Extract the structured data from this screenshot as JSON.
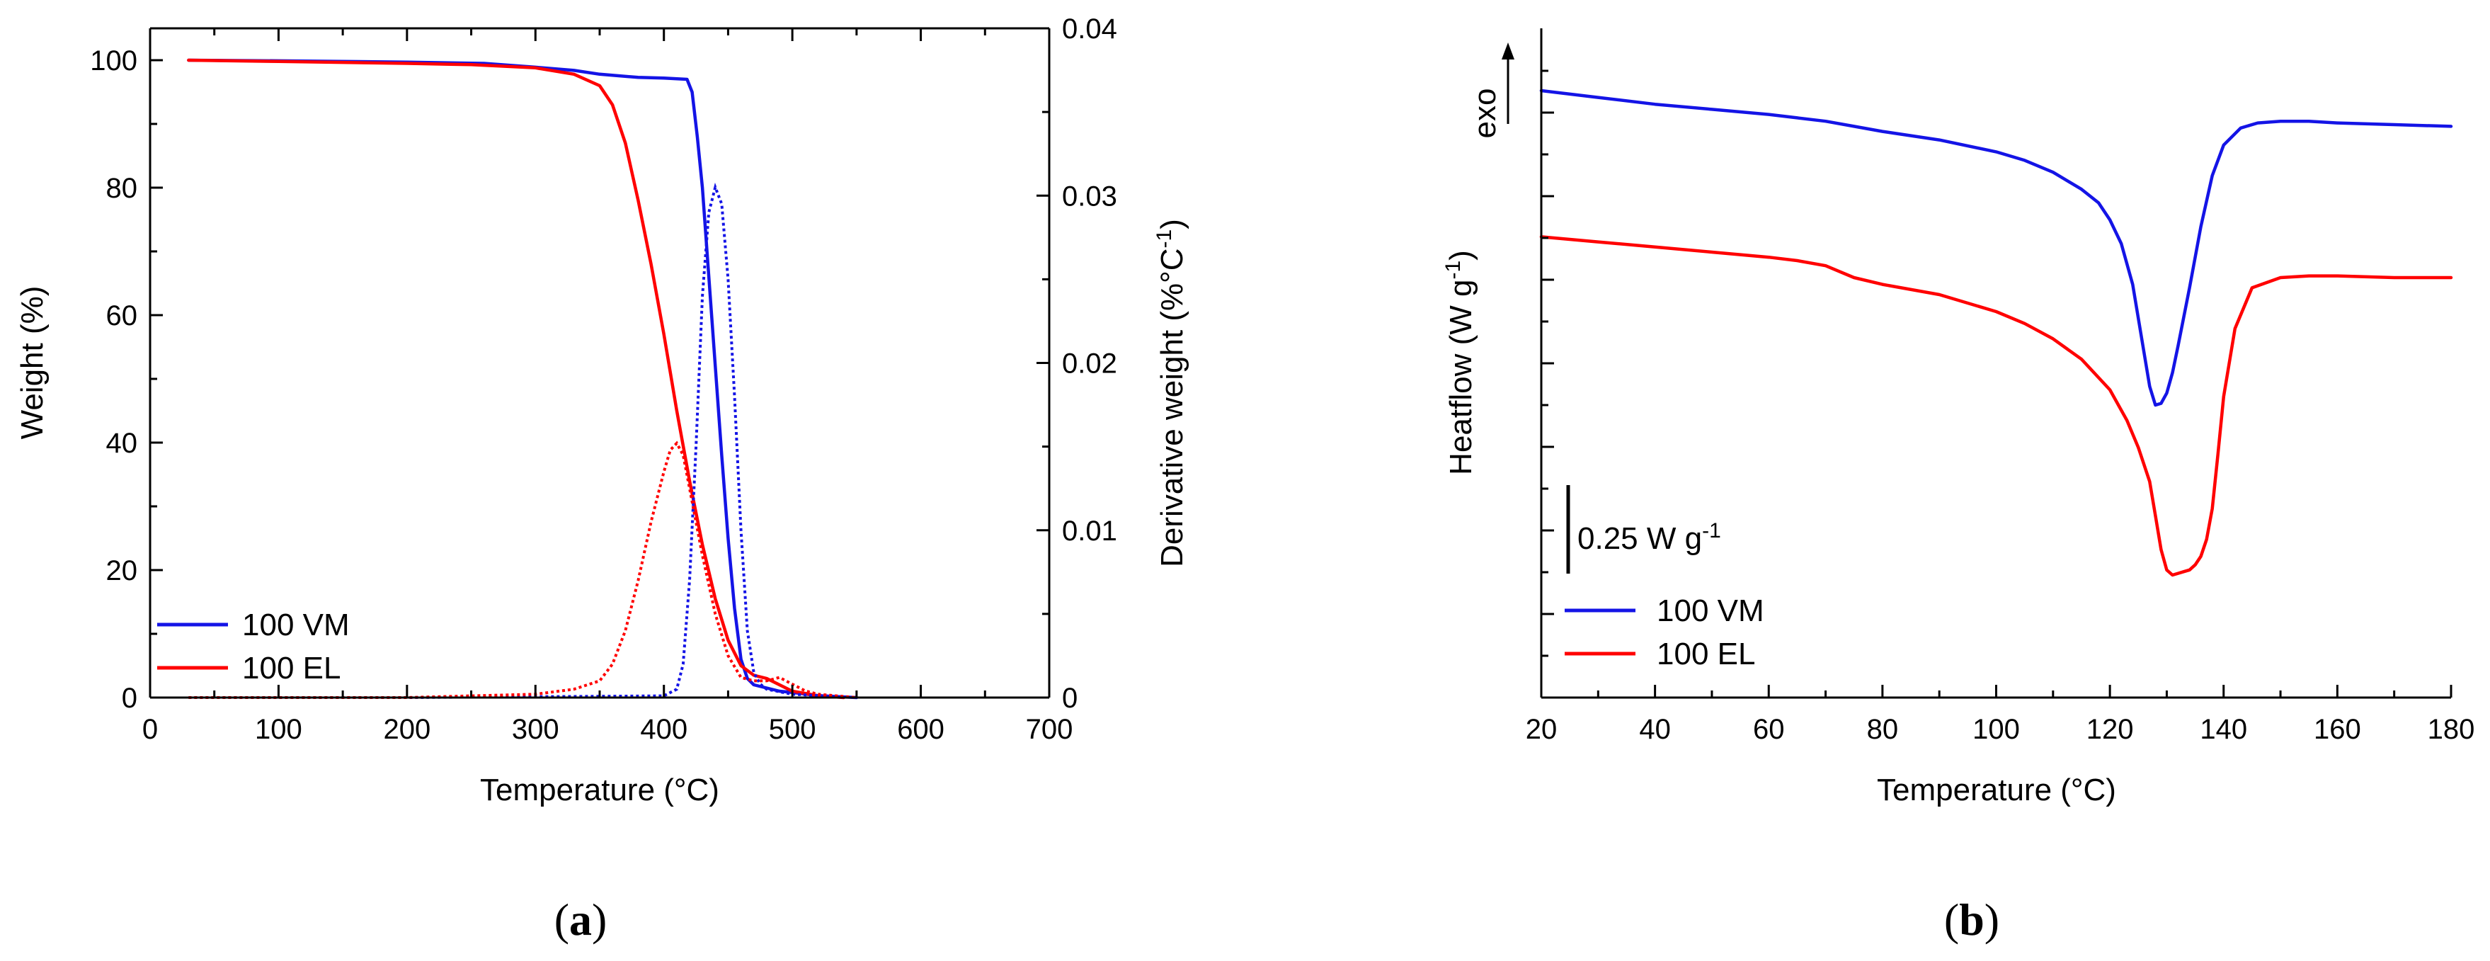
{
  "chart_data": [
    {
      "id": "a",
      "type": "line",
      "panel_label": "a",
      "xlabel": "Temperature (°C)",
      "ylabel": "Weight (%)",
      "y2label": "Derivative weight (%°C",
      "y2label_sup": "-1",
      "y2label_tail": ")",
      "xlim": [
        0,
        700
      ],
      "ylim": [
        0,
        105
      ],
      "y2lim": [
        0,
        0.04
      ],
      "xticks": [
        "0",
        "100",
        "200",
        "300",
        "400",
        "500",
        "600",
        "700"
      ],
      "yticks": [
        "0",
        "20",
        "40",
        "60",
        "80",
        "100"
      ],
      "y2ticks": [
        "0",
        "0.01",
        "0.02",
        "0.03",
        "0.04"
      ],
      "legend": [
        "100 VM",
        "100 EL"
      ],
      "legend_position": "bottom-left",
      "colors": {
        "VM": "#1414e6",
        "EL": "#ff0000"
      },
      "series": [
        {
          "name": "100 VM",
          "axis": "left",
          "style": "solid",
          "color": "#1414e6",
          "x": [
            30,
            100,
            200,
            260,
            300,
            330,
            350,
            380,
            400,
            418,
            422,
            426,
            430,
            435,
            440,
            445,
            450,
            455,
            460,
            465,
            470,
            480,
            490,
            500,
            520,
            540,
            550
          ],
          "y": [
            100,
            99.9,
            99.7,
            99.5,
            98.9,
            98.4,
            97.8,
            97.3,
            97.2,
            97.0,
            95.0,
            88.0,
            80.0,
            66.0,
            52.0,
            38.0,
            25.0,
            14.0,
            6.0,
            3.0,
            2.0,
            1.5,
            1.0,
            0.8,
            0.3,
            0.1,
            0.0
          ]
        },
        {
          "name": "100 EL",
          "axis": "left",
          "style": "solid",
          "color": "#ff0000",
          "x": [
            30,
            100,
            200,
            250,
            300,
            330,
            350,
            360,
            370,
            380,
            390,
            400,
            410,
            420,
            430,
            440,
            450,
            460,
            470,
            480,
            490,
            500,
            520,
            540
          ],
          "y": [
            100,
            99.8,
            99.5,
            99.3,
            98.8,
            97.8,
            96.0,
            93.0,
            87.0,
            78.0,
            68.0,
            57.0,
            45.0,
            34.0,
            24.0,
            15.5,
            9.0,
            5.0,
            3.5,
            3.0,
            2.0,
            1.0,
            0.3,
            0.0
          ]
        },
        {
          "name": "100 VM derivative",
          "axis": "right",
          "style": "dotted",
          "color": "#1414e6",
          "x": [
            30,
            200,
            400,
            410,
            415,
            420,
            425,
            430,
            435,
            440,
            445,
            450,
            455,
            460,
            465,
            470,
            475,
            480,
            500,
            550
          ],
          "y": [
            0,
            0,
            0.0001,
            0.0005,
            0.002,
            0.007,
            0.015,
            0.024,
            0.029,
            0.0305,
            0.0295,
            0.025,
            0.018,
            0.01,
            0.004,
            0.0015,
            0.0008,
            0.0005,
            0.0002,
            0
          ]
        },
        {
          "name": "100 EL derivative",
          "axis": "right",
          "style": "dotted",
          "color": "#ff0000",
          "x": [
            30,
            200,
            250,
            300,
            330,
            350,
            360,
            370,
            380,
            390,
            400,
            405,
            410,
            415,
            420,
            430,
            440,
            450,
            460,
            470,
            480,
            490,
            500,
            510,
            520,
            550
          ],
          "y": [
            0,
            0,
            0.0001,
            0.0002,
            0.0005,
            0.001,
            0.002,
            0.004,
            0.007,
            0.0105,
            0.0135,
            0.0148,
            0.0152,
            0.0145,
            0.0125,
            0.0085,
            0.005,
            0.0025,
            0.0012,
            0.001,
            0.001,
            0.0012,
            0.0008,
            0.0004,
            0.0002,
            0
          ]
        }
      ]
    },
    {
      "id": "b",
      "type": "line",
      "panel_label": "b",
      "xlabel": "Temperature (°C)",
      "ylabel": "Heatflow (W g",
      "ylabel_sup": "-1",
      "ylabel_tail": ")",
      "exo_label": "exo",
      "scale_bar_label": "0.25 W g",
      "scale_bar_sup": "-1",
      "scale_bar_value": 0.25,
      "xlim": [
        20,
        180
      ],
      "ylim": [
        0,
        1.65
      ],
      "xticks": [
        "20",
        "40",
        "60",
        "80",
        "100",
        "120",
        "140",
        "160",
        "180"
      ],
      "legend": [
        "100 VM",
        "100 EL"
      ],
      "legend_position": "bottom-left",
      "series": [
        {
          "name": "100 VM",
          "style": "solid",
          "color": "#1414e6",
          "x": [
            20,
            30,
            40,
            50,
            60,
            65,
            70,
            75,
            80,
            90,
            100,
            105,
            110,
            115,
            118,
            120,
            122,
            124,
            125,
            126,
            127,
            128,
            129,
            130,
            131,
            132,
            134,
            136,
            138,
            140,
            143,
            146,
            150,
            155,
            160,
            170,
            180
          ],
          "y": [
            1.65,
            1.63,
            1.61,
            1.595,
            1.58,
            1.57,
            1.56,
            1.545,
            1.53,
            1.505,
            1.47,
            1.445,
            1.41,
            1.36,
            1.32,
            1.27,
            1.2,
            1.08,
            0.98,
            0.88,
            0.78,
            0.725,
            0.73,
            0.76,
            0.82,
            0.9,
            1.07,
            1.25,
            1.4,
            1.49,
            1.54,
            1.555,
            1.56,
            1.56,
            1.555,
            1.55,
            1.545
          ]
        },
        {
          "name": "100 EL",
          "style": "solid",
          "color": "#ff0000",
          "x": [
            20,
            30,
            40,
            50,
            60,
            65,
            70,
            75,
            80,
            90,
            100,
            105,
            110,
            115,
            120,
            123,
            125,
            127,
            128,
            129,
            130,
            131,
            132,
            133,
            134,
            135,
            136,
            137,
            138,
            139,
            140,
            142,
            145,
            150,
            155,
            160,
            170,
            180
          ],
          "y": [
            1.22,
            1.205,
            1.19,
            1.175,
            1.16,
            1.15,
            1.135,
            1.1,
            1.08,
            1.05,
            1.0,
            0.965,
            0.92,
            0.86,
            0.77,
            0.68,
            0.6,
            0.5,
            0.4,
            0.3,
            0.24,
            0.225,
            0.23,
            0.235,
            0.24,
            0.255,
            0.28,
            0.33,
            0.42,
            0.58,
            0.75,
            0.95,
            1.07,
            1.1,
            1.105,
            1.105,
            1.1,
            1.1
          ]
        }
      ]
    }
  ]
}
